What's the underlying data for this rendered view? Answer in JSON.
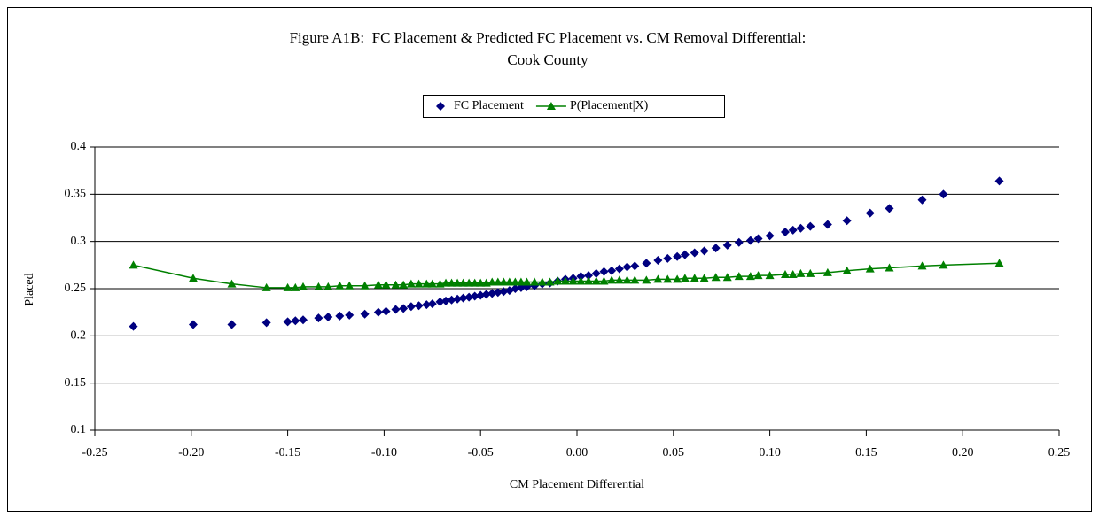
{
  "chart_data": {
    "type": "scatter",
    "title": [
      "Figure A1B:  FC Placement & Predicted FC Placement vs. CM Removal Differential:",
      "Cook County"
    ],
    "x_label": "CM Placement Differential",
    "y_label": "Placed",
    "x": [
      -0.23,
      -0.199,
      -0.179,
      -0.161,
      -0.15,
      -0.146,
      -0.142,
      -0.134,
      -0.129,
      -0.123,
      -0.118,
      -0.11,
      -0.103,
      -0.099,
      -0.094,
      -0.09,
      -0.086,
      -0.082,
      -0.078,
      -0.075,
      -0.071,
      -0.068,
      -0.065,
      -0.062,
      -0.059,
      -0.056,
      -0.053,
      -0.05,
      -0.047,
      -0.044,
      -0.041,
      -0.038,
      -0.035,
      -0.032,
      -0.029,
      -0.026,
      -0.022,
      -0.018,
      -0.014,
      -0.01,
      -0.006,
      -0.002,
      0.002,
      0.006,
      0.01,
      0.014,
      0.018,
      0.022,
      0.026,
      0.03,
      0.036,
      0.042,
      0.047,
      0.052,
      0.056,
      0.061,
      0.066,
      0.072,
      0.078,
      0.084,
      0.09,
      0.094,
      0.1,
      0.108,
      0.112,
      0.116,
      0.121,
      0.13,
      0.14,
      0.152,
      0.162,
      0.179,
      0.19,
      0.219
    ],
    "series": [
      {
        "name": "FC Placement",
        "color": "#000080",
        "marker": "diamond",
        "line": false,
        "values": [
          0.21,
          0.212,
          0.212,
          0.214,
          0.215,
          0.216,
          0.217,
          0.219,
          0.22,
          0.221,
          0.222,
          0.223,
          0.225,
          0.226,
          0.228,
          0.229,
          0.231,
          0.232,
          0.233,
          0.234,
          0.236,
          0.237,
          0.238,
          0.239,
          0.24,
          0.241,
          0.242,
          0.243,
          0.244,
          0.245,
          0.246,
          0.247,
          0.248,
          0.25,
          0.251,
          0.252,
          0.253,
          0.255,
          0.256,
          0.258,
          0.26,
          0.261,
          0.263,
          0.264,
          0.266,
          0.268,
          0.269,
          0.271,
          0.273,
          0.274,
          0.277,
          0.28,
          0.282,
          0.284,
          0.286,
          0.288,
          0.29,
          0.293,
          0.296,
          0.299,
          0.301,
          0.303,
          0.306,
          0.31,
          0.312,
          0.314,
          0.316,
          0.318,
          0.322,
          0.33,
          0.335,
          0.344,
          0.35,
          0.364
        ]
      },
      {
        "name": "P(Placement|X)",
        "color": "#008000",
        "marker": "triangle",
        "line": true,
        "values": [
          0.275,
          0.261,
          0.255,
          0.251,
          0.251,
          0.251,
          0.252,
          0.252,
          0.252,
          0.253,
          0.253,
          0.253,
          0.254,
          0.254,
          0.254,
          0.254,
          0.255,
          0.255,
          0.255,
          0.255,
          0.255,
          0.256,
          0.256,
          0.256,
          0.256,
          0.256,
          0.256,
          0.256,
          0.256,
          0.257,
          0.257,
          0.257,
          0.257,
          0.257,
          0.257,
          0.257,
          0.257,
          0.257,
          0.257,
          0.258,
          0.258,
          0.258,
          0.258,
          0.258,
          0.258,
          0.258,
          0.259,
          0.259,
          0.259,
          0.259,
          0.259,
          0.26,
          0.26,
          0.26,
          0.261,
          0.261,
          0.261,
          0.262,
          0.262,
          0.263,
          0.263,
          0.264,
          0.264,
          0.265,
          0.265,
          0.266,
          0.266,
          0.267,
          0.269,
          0.271,
          0.272,
          0.274,
          0.275,
          0.277
        ]
      }
    ],
    "xlim": [
      -0.25,
      0.25
    ],
    "xticks": [
      -0.25,
      {
        "value": -0.2,
        "label": "-0.20"
      },
      -0.15,
      {
        "value": -0.1,
        "label": "-0.10"
      },
      -0.05,
      {
        "value": 0,
        "label": "0.00"
      },
      0.05,
      {
        "value": 0.1,
        "label": "0.10"
      },
      0.15,
      {
        "value": 0.2,
        "label": "0.20"
      },
      0.25
    ],
    "ylim": [
      0.1,
      0.4
    ],
    "yticks": [
      0.1,
      0.15,
      0.2,
      0.25,
      0.3,
      0.35,
      0.4
    ],
    "grid": true,
    "legend": "top"
  }
}
